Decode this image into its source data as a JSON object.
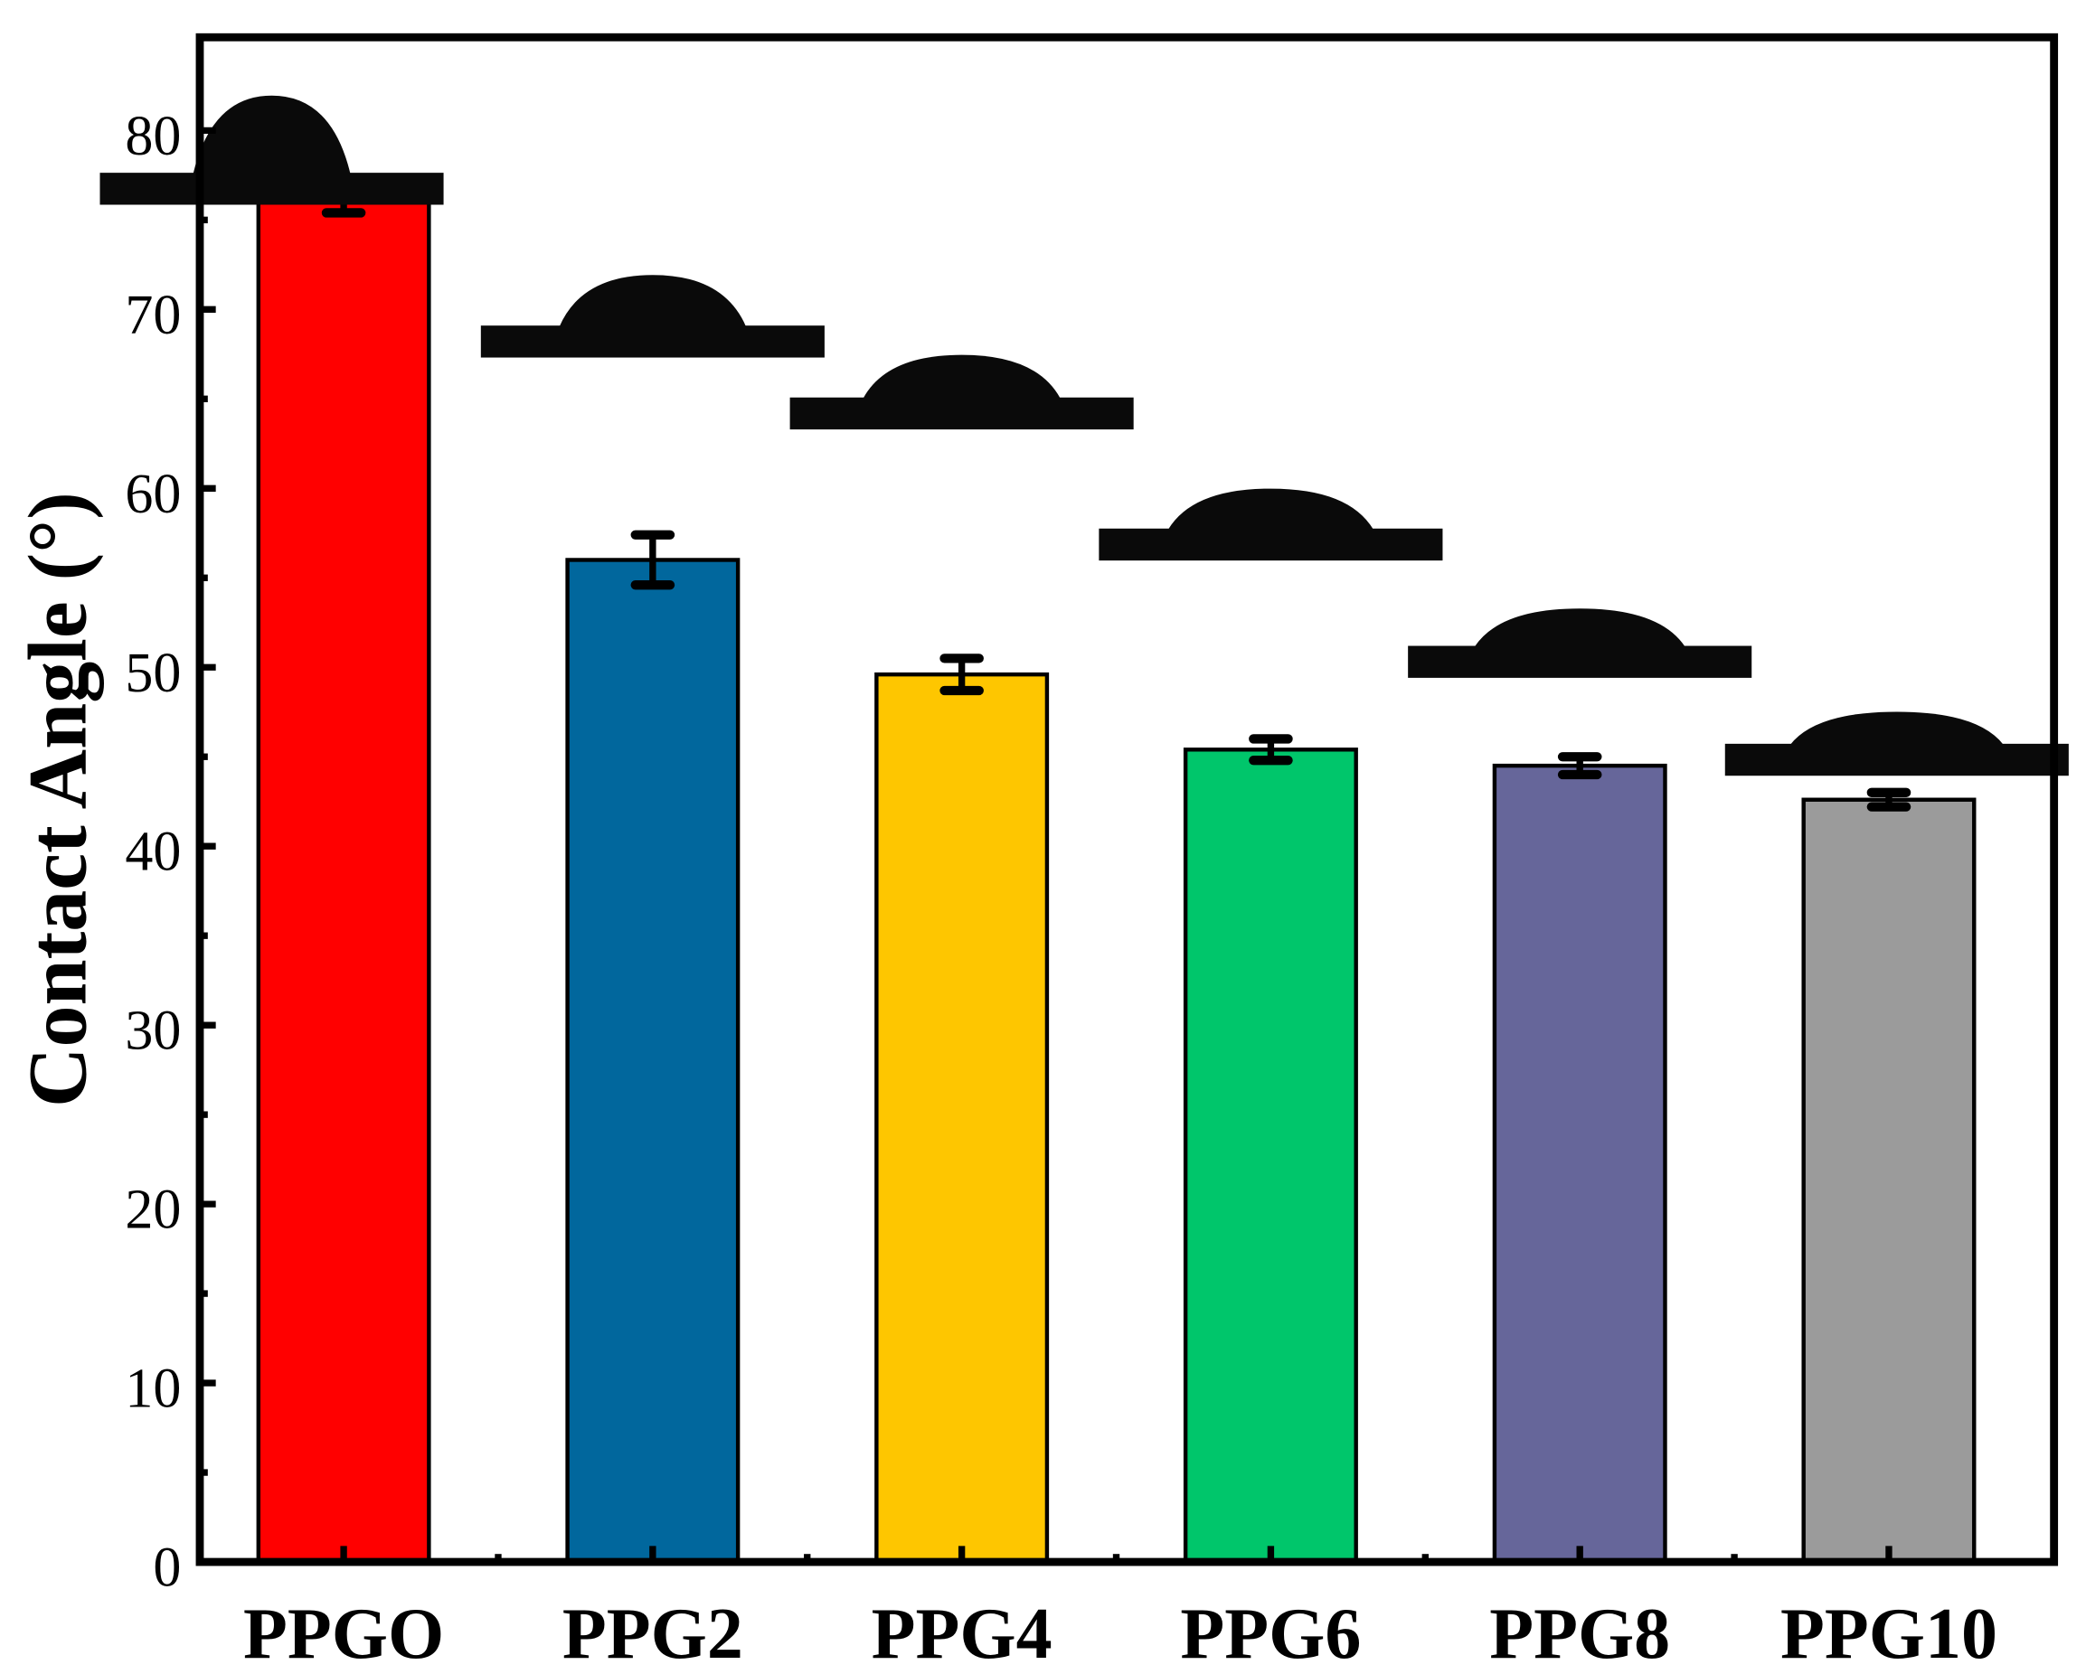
{
  "chart_data": {
    "type": "bar",
    "title": "",
    "xlabel": "",
    "ylabel": "Contact Angle (°)",
    "ylim": [
      0,
      85
    ],
    "yticks": [
      0,
      10,
      20,
      30,
      40,
      50,
      60,
      70,
      80
    ],
    "grid": false,
    "legend": null,
    "categories": [
      "PPGO",
      "PPG2",
      "PPG4",
      "PPG6",
      "PPG8",
      "PPG10"
    ],
    "values": [
      76.0,
      56.0,
      49.6,
      45.4,
      44.5,
      42.6
    ],
    "errors": [
      0.6,
      1.4,
      0.9,
      0.6,
      0.5,
      0.4
    ],
    "colors": [
      "#ff0000",
      "#01679d",
      "#fec600",
      "#00c66b",
      "#66669a",
      "#9b9b9b"
    ],
    "annotations": [
      "Water droplet contact-angle photo inset above each bar"
    ]
  }
}
